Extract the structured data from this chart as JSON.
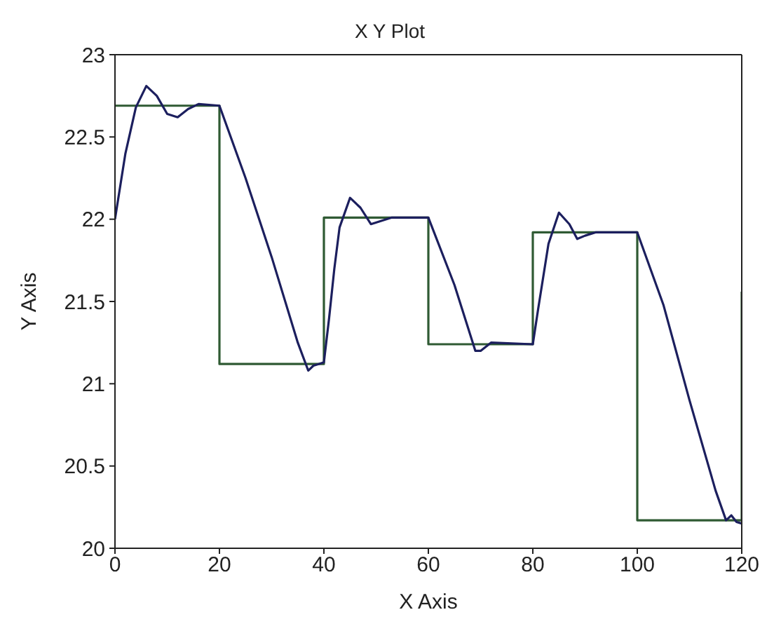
{
  "chart_data": {
    "type": "line",
    "title": "X Y Plot",
    "xlabel": "X Axis",
    "ylabel": "Y Axis",
    "xlim": [
      0,
      120
    ],
    "xticks": [
      0,
      20,
      40,
      60,
      80,
      100,
      120
    ],
    "ylim": [
      20,
      23
    ],
    "yticks": [
      20,
      20.5,
      21,
      21.5,
      22,
      22.5,
      23
    ],
    "series": [
      {
        "type": "step",
        "color": "#2f5a33",
        "x": [
          0,
          20,
          40,
          60,
          80,
          100,
          120
        ],
        "values": [
          22.69,
          21.12,
          22.01,
          21.24,
          21.92,
          20.17,
          21.56
        ]
      },
      {
        "type": "line",
        "color": "#1c1f5e",
        "x": [
          0,
          2,
          4,
          6,
          8,
          10,
          12,
          14,
          16,
          20,
          25,
          30,
          35,
          37,
          38,
          39,
          40,
          41,
          42,
          43,
          45,
          47,
          49,
          51,
          53,
          60,
          65,
          69,
          70,
          72,
          80,
          81,
          83,
          85,
          87,
          88.5,
          90,
          92,
          100,
          105,
          110,
          115,
          117,
          118,
          119,
          120
        ],
        "values": [
          22.0,
          22.4,
          22.68,
          22.81,
          22.75,
          22.64,
          22.62,
          22.67,
          22.7,
          22.69,
          22.25,
          21.77,
          21.25,
          21.08,
          21.11,
          21.12,
          21.13,
          21.4,
          21.7,
          21.95,
          22.13,
          22.07,
          21.97,
          21.99,
          22.01,
          22.01,
          21.6,
          21.2,
          21.2,
          21.25,
          21.24,
          21.45,
          21.85,
          22.04,
          21.97,
          21.88,
          21.9,
          21.92,
          21.92,
          21.48,
          20.9,
          20.35,
          20.17,
          20.2,
          20.16,
          20.15
        ]
      }
    ]
  }
}
